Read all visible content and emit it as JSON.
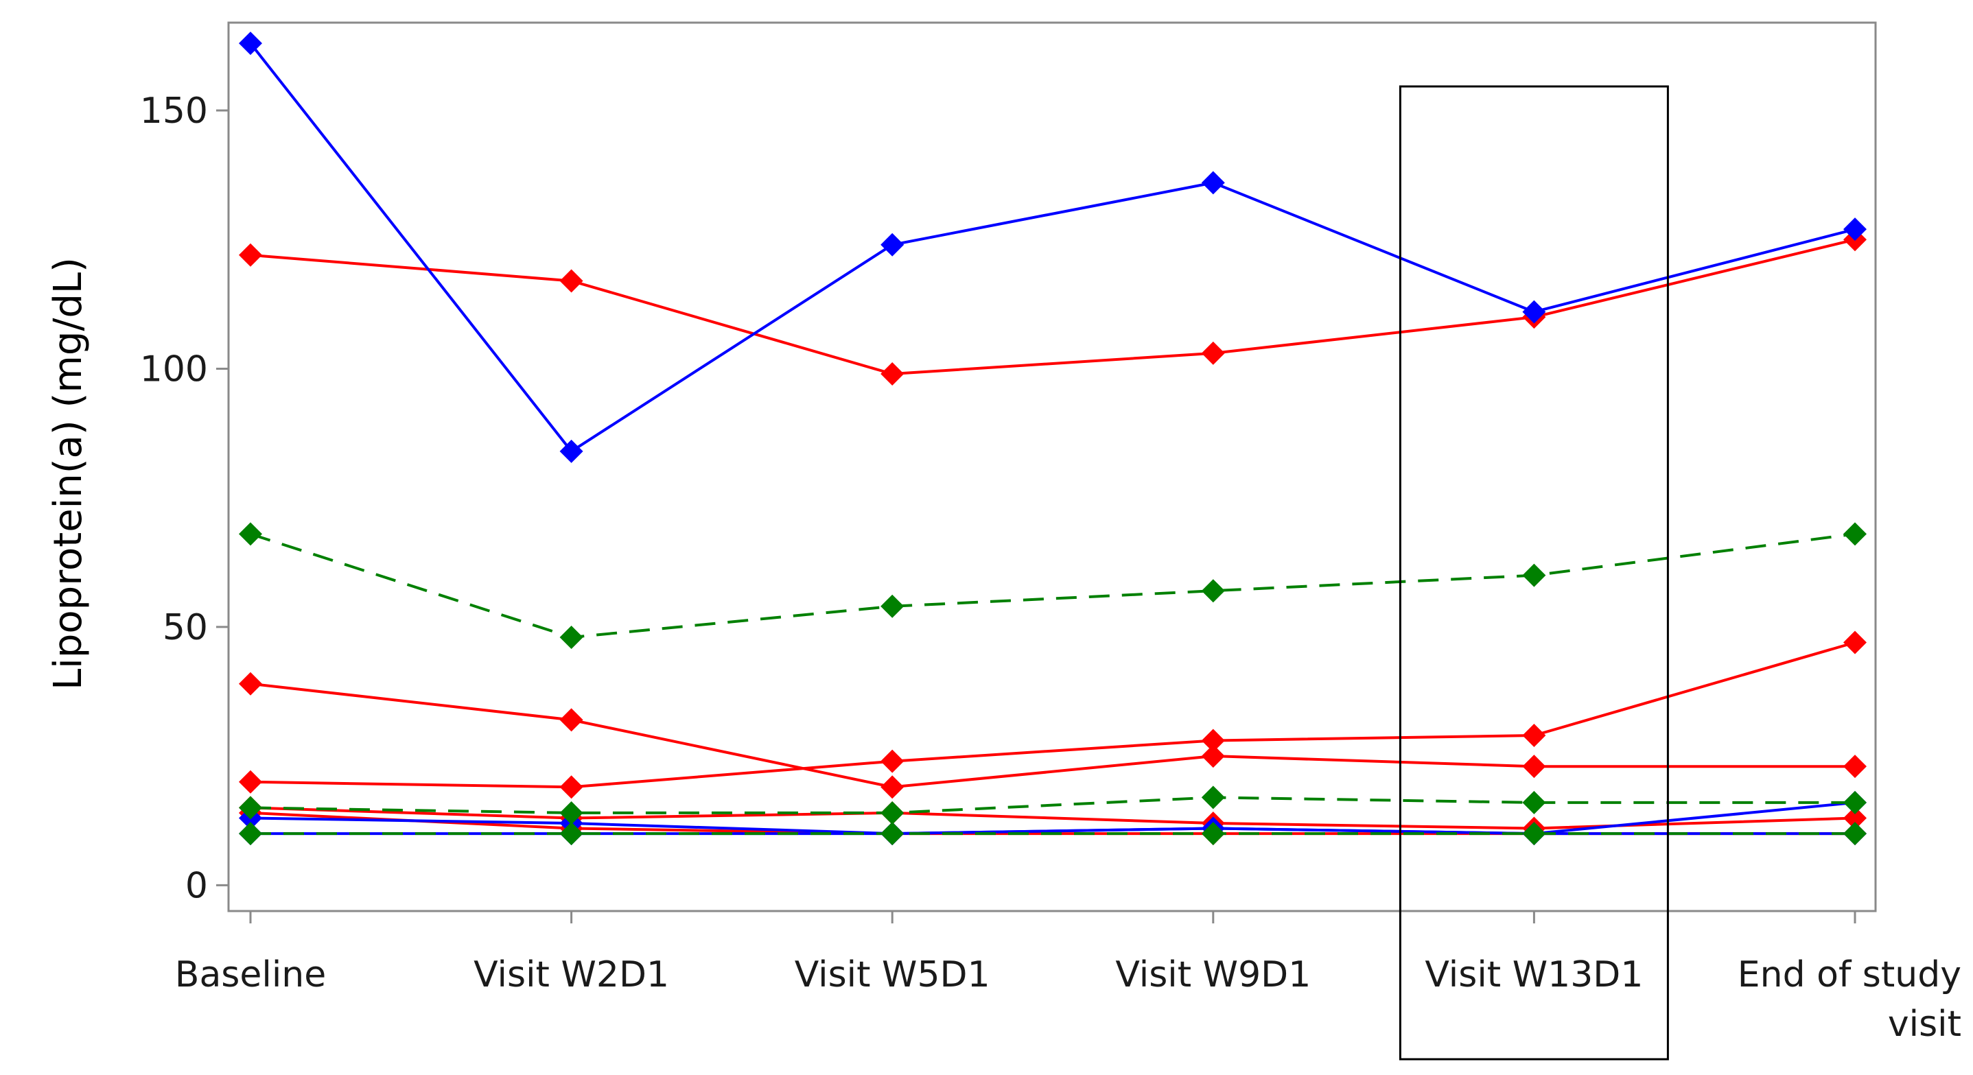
{
  "chart_data": {
    "type": "line",
    "title": "",
    "xlabel": "",
    "ylabel": "Lipoprotein(a)  (mg/dL)",
    "ylim": [
      -5,
      167
    ],
    "yticks": [
      0,
      50,
      100,
      150
    ],
    "categories": [
      "Baseline",
      "Visit W2D1",
      "Visit W5D1",
      "Visit W9D1",
      "Visit W13D1",
      "End of study visit"
    ],
    "category_lines": [
      [
        "Baseline"
      ],
      [
        "Visit W2D1"
      ],
      [
        "Visit W5D1"
      ],
      [
        "Visit W9D1"
      ],
      [
        "Visit W13D1"
      ],
      [
        "End of study",
        "visit"
      ]
    ],
    "highlight_category": "Visit W13D1",
    "grid": false,
    "legend": "none",
    "series": [
      {
        "color": "#ff0000",
        "dash": "solid",
        "values": [
          14,
          11,
          10,
          10,
          10,
          10
        ]
      },
      {
        "color": "#ff0000",
        "dash": "solid",
        "values": [
          15,
          13,
          14,
          12,
          11,
          13
        ]
      },
      {
        "color": "#ff0000",
        "dash": "solid",
        "values": [
          20,
          19,
          24,
          28,
          29,
          47
        ]
      },
      {
        "color": "#ff0000",
        "dash": "solid",
        "values": [
          39,
          32,
          19,
          25,
          23,
          23
        ]
      },
      {
        "color": "#ff0000",
        "dash": "solid",
        "values": [
          122,
          117,
          99,
          103,
          110,
          125
        ]
      },
      {
        "color": "#0000ff",
        "dash": "solid",
        "values": [
          10,
          10,
          10,
          11,
          10,
          10
        ]
      },
      {
        "color": "#0000ff",
        "dash": "solid",
        "values": [
          13,
          12,
          10,
          11,
          10,
          16
        ]
      },
      {
        "color": "#0000ff",
        "dash": "solid",
        "values": [
          163,
          84,
          124,
          136,
          111,
          127
        ]
      },
      {
        "color": "#008000",
        "dash": "dashed",
        "values": [
          10,
          10,
          10,
          10,
          10,
          10
        ]
      },
      {
        "color": "#008000",
        "dash": "dashed",
        "values": [
          15,
          14,
          14,
          17,
          16,
          16
        ]
      },
      {
        "color": "#008000",
        "dash": "dashed",
        "values": [
          68,
          48,
          54,
          57,
          60,
          68
        ]
      }
    ]
  }
}
